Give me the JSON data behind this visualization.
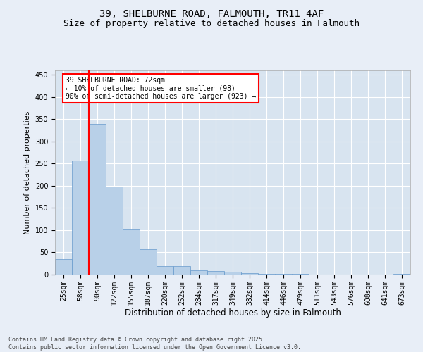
{
  "title": "39, SHELBURNE ROAD, FALMOUTH, TR11 4AF",
  "subtitle": "Size of property relative to detached houses in Falmouth",
  "xlabel": "Distribution of detached houses by size in Falmouth",
  "ylabel": "Number of detached properties",
  "footer": "Contains HM Land Registry data © Crown copyright and database right 2025.\nContains public sector information licensed under the Open Government Licence v3.0.",
  "categories": [
    "25sqm",
    "58sqm",
    "90sqm",
    "122sqm",
    "155sqm",
    "187sqm",
    "220sqm",
    "252sqm",
    "284sqm",
    "317sqm",
    "349sqm",
    "382sqm",
    "414sqm",
    "446sqm",
    "479sqm",
    "511sqm",
    "543sqm",
    "576sqm",
    "608sqm",
    "641sqm",
    "673sqm"
  ],
  "values": [
    35,
    257,
    340,
    198,
    103,
    57,
    19,
    19,
    10,
    8,
    6,
    3,
    2,
    1,
    1,
    0,
    0,
    0,
    0,
    0,
    1
  ],
  "bar_color": "#b8d0e8",
  "bar_edge_color": "#6699cc",
  "vline_x": 1.5,
  "vline_color": "red",
  "annotation_box_text": "39 SHELBURNE ROAD: 72sqm\n← 10% of detached houses are smaller (98)\n90% of semi-detached houses are larger (923) →",
  "ylim": [
    0,
    460
  ],
  "yticks": [
    0,
    50,
    100,
    150,
    200,
    250,
    300,
    350,
    400,
    450
  ],
  "background_color": "#e8eef7",
  "plot_bg_color": "#d8e4f0",
  "grid_color": "#ffffff",
  "title_fontsize": 10,
  "subtitle_fontsize": 9,
  "tick_fontsize": 7,
  "ylabel_fontsize": 8,
  "xlabel_fontsize": 8.5,
  "footer_fontsize": 6
}
